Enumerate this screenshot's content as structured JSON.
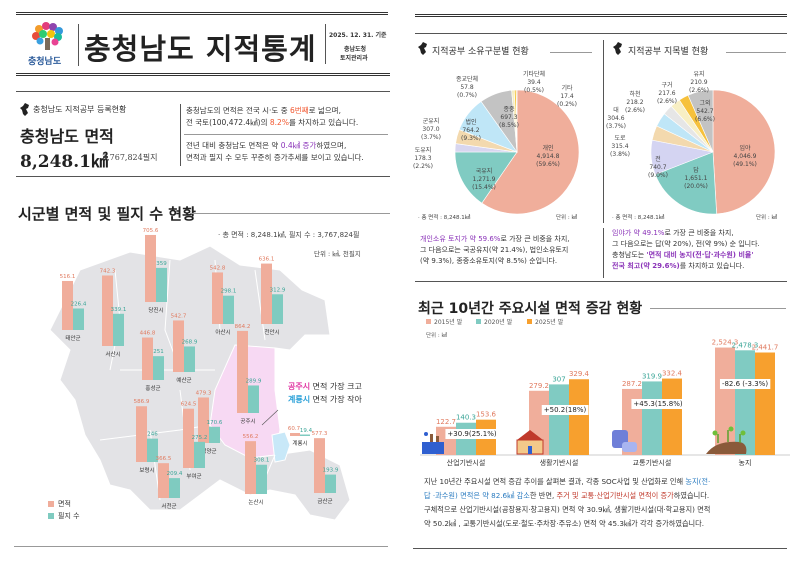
{
  "header": {
    "logo_text": "충청남도",
    "title": "충청남도 지적통계",
    "date": "2025. 12. 31. 기준",
    "org1": "충남도청",
    "org2": "토지관리과"
  },
  "summary": {
    "subtitle": "충청남도 지적공부 등록현황",
    "heading": "충청남도 면적",
    "area": "8,248.1㎢",
    "parcels": "3,767,824필지",
    "p1_a": "충청남도의 면적은 전국 시·도 중 ",
    "p1_hl1": "6번째",
    "p1_b": "로 넓으며,",
    "p1_c": "전 국토(100,472.4㎢)의 ",
    "p1_hl2": "8.2%",
    "p1_d": "를 차지하고 있습니다.",
    "p2_a": "전년 대비 충청남도 면적은 약 ",
    "p2_hl": "0.4㎢ 증가",
    "p2_b": "하였으며,",
    "p2_c": "면적과 필지 수 모두 꾸준히 증가추세를 보이고 있습니다."
  },
  "map_section": {
    "title": "시군별 면적 및 필지 수 현황",
    "total": "· 총 면적 : 8,248.1㎢,  필지 수 : 3,767,824필",
    "unit": "단위 : ㎢, 천필지",
    "legend_area": "면적",
    "legend_parcels": "필지 수",
    "note1_hl": "공주시",
    "note1": " 면적 가장 크고",
    "note2_hl": "계룡시",
    "note2": " 면적 가장 작아",
    "colors": {
      "area": "#f0ad9b",
      "parcels": "#7fcbc0",
      "map": "#e3e3e6",
      "gongju": "#f7d9f3",
      "gyeryong": "#c8e8f8"
    }
  },
  "chart_data": [
    {
      "type": "bar",
      "title": "시군별 면적 및 필지 수 현황",
      "categories": [
        "태안군",
        "서산시",
        "당진시",
        "예산군",
        "아산시",
        "천안시",
        "홍성군",
        "공주시",
        "청양군",
        "보령시",
        "부여군",
        "서천군",
        "논산시",
        "계룡시",
        "금산군"
      ],
      "series": [
        {
          "name": "면적",
          "values": [
            516.1,
            742.3,
            705.6,
            542.7,
            542.8,
            636.1,
            446.8,
            864.2,
            479.3,
            586.9,
            624.5,
            366.5,
            556.2,
            60.7,
            577.3
          ]
        },
        {
          "name": "필지 수",
          "values": [
            226.4,
            339.1,
            359,
            268.9,
            298.1,
            312.9,
            251,
            289.9,
            170.6,
            246,
            275.2,
            209.4,
            308.1,
            19.4,
            193.9
          ]
        }
      ],
      "labels_area": [
        "516.1",
        "742.3",
        "705.6",
        "542.7",
        "542.8",
        "636.1",
        "446.8",
        "864.2",
        "479.3",
        "586.9",
        "624.5",
        "366.5",
        "556.2",
        "60.7",
        "577.3"
      ],
      "labels_parcels": [
        "226.4",
        "339.1",
        "359",
        "268.9",
        "298.1",
        "312.9",
        "251",
        "289.9",
        "170.6",
        "246",
        "275.2",
        "209.4",
        "308.1",
        "19.4",
        "193.9"
      ]
    },
    {
      "type": "pie",
      "title": "지적공부 소유구분별 현황",
      "total": "· 총 면적 : 8,248.1㎢",
      "unit": "단위 : ㎢",
      "slices": [
        {
          "name": "개인",
          "value": 4914.8,
          "label": "4,914.8",
          "pct": "(59.6%)",
          "color": "#f0ae9b"
        },
        {
          "name": "국유지",
          "value": 1271.9,
          "label": "1,271.9",
          "pct": "(15.4%)",
          "color": "#80cbc2"
        },
        {
          "name": "도유지",
          "value": 178.3,
          "label": "178.3",
          "pct": "(2.2%)",
          "color": "#d8d6f0"
        },
        {
          "name": "군유지",
          "value": 307.0,
          "label": "307.0",
          "pct": "(3.7%)",
          "color": "#f3d9ae"
        },
        {
          "name": "법인",
          "value": 764.2,
          "label": "764.2",
          "pct": "(9.3%)",
          "color": "#bfe6f7"
        },
        {
          "name": "종중",
          "value": 697.3,
          "label": "697.3",
          "pct": "(8.5%)",
          "color": "#c3c3c3"
        },
        {
          "name": "종교단체",
          "value": 57.8,
          "label": "57.8",
          "pct": "(0.7%)",
          "color": "#f5edc4"
        },
        {
          "name": "기타단체",
          "value": 39.4,
          "label": "39.4",
          "pct": "(0.5%)",
          "color": "#f6c844"
        },
        {
          "name": "기타",
          "value": 17.4,
          "label": "17.4",
          "pct": "(0.2%)",
          "color": "#f0a83c"
        }
      ]
    },
    {
      "type": "pie",
      "title": "지적공부 지목별 현황",
      "total": "· 총 면적 : 8,248.1㎢",
      "unit": "단위 : ㎢",
      "slices": [
        {
          "name": "임야",
          "value": 4046.9,
          "label": "4,046.9",
          "pct": "(49.1%)",
          "color": "#f0ae9b"
        },
        {
          "name": "답",
          "value": 1651.1,
          "label": "1,651.1",
          "pct": "(20.0%)",
          "color": "#80cbc2"
        },
        {
          "name": "전",
          "value": 740.7,
          "label": "740.7",
          "pct": "(9.0%)",
          "color": "#d4d4f2"
        },
        {
          "name": "도로",
          "value": 315.4,
          "label": "315.4",
          "pct": "(3.8%)",
          "color": "#f3d9ae"
        },
        {
          "name": "대",
          "value": 304.6,
          "label": "304.6",
          "pct": "(3.7%)",
          "color": "#bfe6f7"
        },
        {
          "name": "하천",
          "value": 218.2,
          "label": "218.2",
          "pct": "(2.6%)",
          "color": "#e6e6e6"
        },
        {
          "name": "구거",
          "value": 217.6,
          "label": "217.6",
          "pct": "(2.6%)",
          "color": "#f8efc4"
        },
        {
          "name": "유지",
          "value": 210.9,
          "label": "210.9",
          "pct": "(2.6%)",
          "color": "#f6c13c"
        },
        {
          "name": "그외",
          "value": 542.7,
          "label": "542.7",
          "pct": "(6.6%)",
          "color": "#c3c3c3"
        }
      ]
    },
    {
      "type": "bar",
      "title": "최근 10년간 주요시설  면적 증감 현황",
      "unit": "단위 : ㎢",
      "categories": [
        "산업기반시설",
        "생활기반시설",
        "교통기반시설",
        "농지"
      ],
      "series": [
        {
          "name": "2015년 말",
          "color": "#f0ae9b",
          "values": [
            122.7,
            279.2,
            287.2,
            2524.3
          ],
          "labels": [
            "122.7",
            "279.2",
            "287.2",
            "2,524.3"
          ]
        },
        {
          "name": "2020년 말",
          "color": "#80cbc2",
          "values": [
            140.3,
            307,
            319.9,
            2478.3
          ],
          "labels": [
            "140.3",
            "307",
            "319.9",
            "2,478.3"
          ]
        },
        {
          "name": "2025년 말",
          "color": "#f7a02e",
          "values": [
            153.6,
            329.4,
            332.4,
            2441.7
          ],
          "labels": [
            "153.6",
            "329.4",
            "332.4",
            "2,441.7"
          ]
        }
      ],
      "changes": [
        "+30.9(25.1%)",
        "+50.2(18%)",
        "+45.3(15.8%)",
        "-82.6 (-3.3%)"
      ]
    }
  ],
  "ownership_text": {
    "hl": "개인소유 토지가 약 59.6%",
    "l1": "로 가장 큰 비중을 차지,",
    "l2": "그 다음으로는 국공유지(약 21.4%), 법인소유토지",
    "l3": "(약 9.3%), 종중소유토지(약 8.5%) 순입니다."
  },
  "landuse_text": {
    "hl": "임야가 약 49.1%",
    "l1": "로 가장 큰 비중을 차지,",
    "l2": "그 다음으로는 답(약 20%), 전(약 9%) 순 입니다.",
    "l3": "충청남도는 ",
    "hl2": "'면적 대비 농지(전·답·과수원) 비율'",
    "hl3": "전국 최고(약 29.6%)",
    "l4": "를 차지하고 있습니다."
  },
  "trend_text": {
    "a": "지난 10년간 주요시설 면적 증감 추이를 살펴본 결과, 각종 SOC사업 및 산업화로 인해 ",
    "hl1": "농지(전·",
    "hl1b": "답 ·과수원) 면적은 약 82.6㎢ 감소",
    "b": "한 반면, ",
    "hl2": "주거 및 교통·산업기반시설 면적이 증가",
    "c": "하였습니다.",
    "d": "구체적으로 산업기반시설(공장용지·창고용지) 면적 약 30.9㎢, 생활기반시설(대·학교용지) 면적",
    "e": "약 50.2㎢ , 교통기반시설(도로·철도·주차장·주유소) 면적 약 45.3㎢가 각각 증가하였습니다."
  }
}
